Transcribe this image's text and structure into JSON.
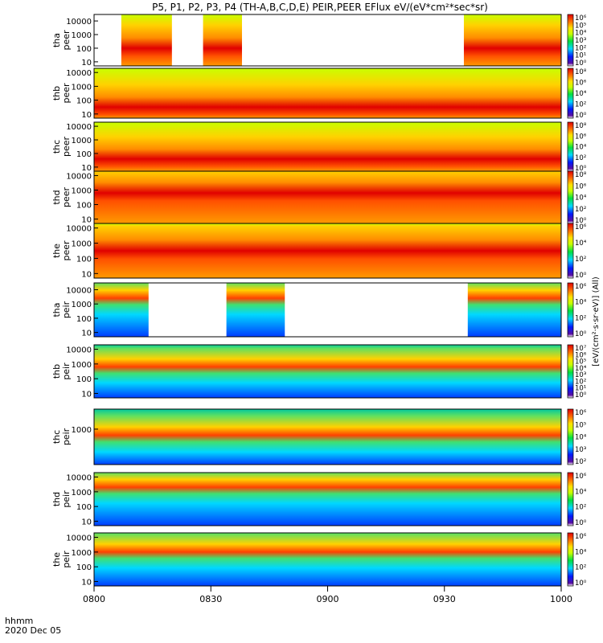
{
  "chart_data": {
    "type": "heatmap",
    "title": "P5, P1, P2, P3, P4 (TH-A,B,C,D,E) PEIR,PEER EFlux eV/(eV*cm²*sec*sr)",
    "xlabel_line1": "hhmm",
    "xlabel_line2": "2020 Dec 05",
    "x_ticks": [
      "0800",
      "0830",
      "0900",
      "0930",
      "1000"
    ],
    "xlim_minutes": [
      0,
      120
    ],
    "colorbar_label": "[eV/(cm²·s·sr·eV)] (All)",
    "panels": [
      {
        "label1": "tha",
        "label2": "peer",
        "yticks": [
          "10000",
          "1000",
          "100",
          "10"
        ],
        "ylim": [
          5,
          30000
        ],
        "cbar_ticks": [
          "10⁶",
          "10⁵",
          "10⁴",
          "10³",
          "10²",
          "10¹",
          "10⁰"
        ],
        "coverage_minutes": [
          [
            7,
            20
          ],
          [
            28,
            38
          ],
          [
            95,
            120
          ]
        ],
        "peak_log_energy": 2.0
      },
      {
        "label1": "thb",
        "label2": "peer",
        "yticks": [
          "10000",
          "1000",
          "100",
          "10"
        ],
        "ylim": [
          5,
          20000
        ],
        "cbar_ticks": [
          "10⁸",
          "10⁶",
          "10⁴",
          "10²",
          "10⁰"
        ],
        "coverage_minutes": [
          [
            0,
            120
          ]
        ],
        "peak_log_energy": 1.5
      },
      {
        "label1": "thc",
        "label2": "peer",
        "yticks": [
          "10000",
          "1000",
          "100",
          "10"
        ],
        "ylim": [
          5,
          20000
        ],
        "cbar_ticks": [
          "10⁸",
          "10⁶",
          "10⁴",
          "10²",
          "10⁰"
        ],
        "coverage_minutes": [
          [
            0,
            120
          ]
        ],
        "peak_log_energy": 1.6
      },
      {
        "label1": "thd",
        "label2": "peer",
        "yticks": [
          "10000",
          "1000",
          "100",
          "10"
        ],
        "ylim": [
          5,
          20000
        ],
        "cbar_ticks": [
          "10⁸",
          "10⁶",
          "10⁴",
          "10²",
          "10⁰"
        ],
        "coverage_minutes": [
          [
            0,
            120
          ]
        ],
        "peak_log_energy": 2.8
      },
      {
        "label1": "the",
        "label2": "peer",
        "yticks": [
          "10000",
          "1000",
          "100",
          "10"
        ],
        "ylim": [
          5,
          20000
        ],
        "cbar_ticks": [
          "10⁶",
          "10⁴",
          "10²",
          "10⁰"
        ],
        "coverage_minutes": [
          [
            0,
            120
          ]
        ],
        "peak_log_energy": 2.5
      },
      {
        "label1": "tha",
        "label2": "peir",
        "yticks": [
          "10000",
          "1000",
          "100",
          "10"
        ],
        "ylim": [
          5,
          30000
        ],
        "cbar_ticks": [
          "10⁶",
          "10⁴",
          "10²",
          "10⁰"
        ],
        "coverage_minutes": [
          [
            0,
            14
          ],
          [
            34,
            49
          ],
          [
            96,
            120
          ]
        ],
        "peak_log_energy": 3.4
      },
      {
        "label1": "thb",
        "label2": "peir",
        "yticks": [
          "10000",
          "1000",
          "100",
          "10"
        ],
        "ylim": [
          5,
          20000
        ],
        "cbar_ticks": [
          "10⁷",
          "10⁶",
          "10⁵",
          "10⁴",
          "10³",
          "10²",
          "10¹",
          "10⁰"
        ],
        "coverage_minutes": [
          [
            0,
            120
          ]
        ],
        "peak_log_energy": 2.8
      },
      {
        "label1": "thc",
        "label2": "peir",
        "yticks": [
          "1000"
        ],
        "ylim": [
          5,
          20000
        ],
        "cbar_ticks": [
          "10⁶",
          "10⁵",
          "10⁴",
          "10³",
          "10²"
        ],
        "coverage_minutes": [
          [
            0,
            120
          ]
        ],
        "peak_log_energy": 2.6
      },
      {
        "label1": "thd",
        "label2": "peir",
        "yticks": [
          "10000",
          "1000",
          "100",
          "10"
        ],
        "ylim": [
          5,
          20000
        ],
        "cbar_ticks": [
          "10⁶",
          "10⁴",
          "10²",
          "10⁰"
        ],
        "coverage_minutes": [
          [
            0,
            120
          ]
        ],
        "peak_log_energy": 3.3
      },
      {
        "label1": "the",
        "label2": "peir",
        "yticks": [
          "10000",
          "1000",
          "100",
          "10"
        ],
        "ylim": [
          5,
          20000
        ],
        "cbar_ticks": [
          "10⁶",
          "10⁴",
          "10²",
          "10⁰"
        ],
        "coverage_minutes": [
          [
            0,
            120
          ]
        ],
        "peak_log_energy": 3.0
      }
    ]
  }
}
